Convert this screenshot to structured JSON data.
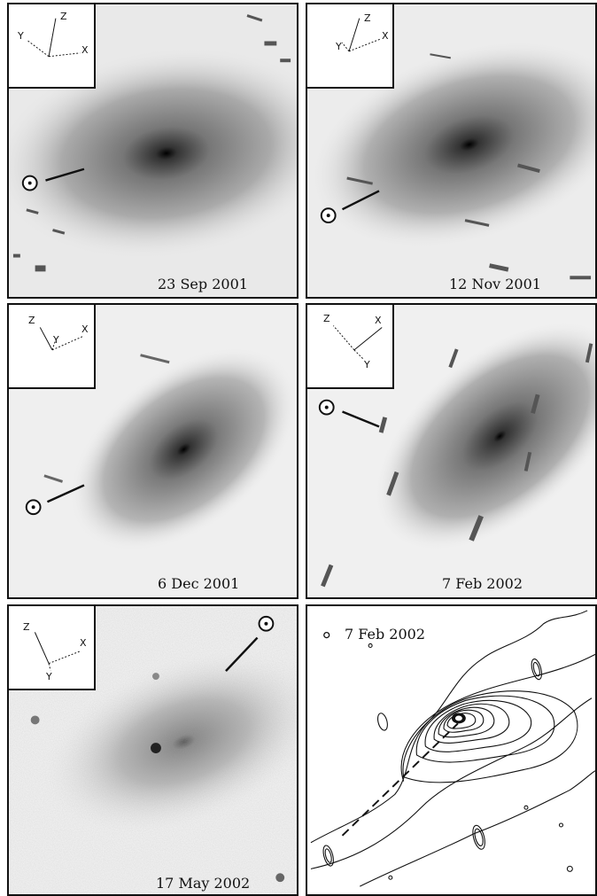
{
  "panels": [
    {
      "date": "23 Sep 2001",
      "axes": {
        "z": "Z",
        "y": "Y",
        "x": "X"
      }
    },
    {
      "date": "12 Nov 2001",
      "axes": {
        "z": "Z",
        "y": "Y",
        "x": "X"
      }
    },
    {
      "date": "6 Dec 2001",
      "axes": {
        "z": "Z",
        "y": "Y",
        "x": "X"
      }
    },
    {
      "date": "7 Feb 2002",
      "axes": {
        "z": "Z",
        "y": "Y",
        "x": "X"
      }
    },
    {
      "date": "17 May 2002",
      "axes": {
        "z": "Z",
        "y": "Y",
        "x": "X"
      }
    },
    {
      "date": "7 Feb 2002"
    }
  ],
  "icons": {
    "sun": "sun-symbol-icon"
  }
}
